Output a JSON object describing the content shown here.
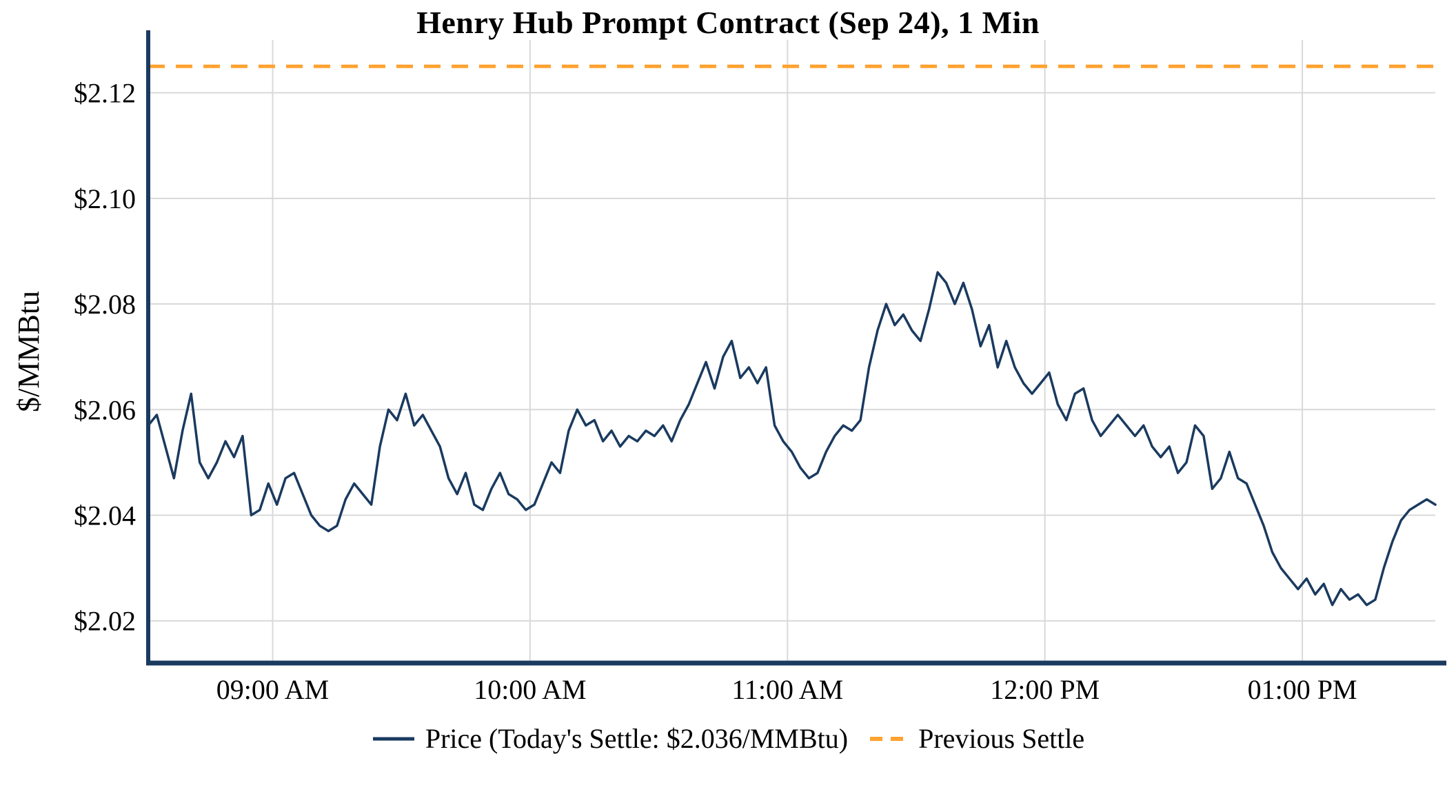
{
  "chart_data": {
    "type": "line",
    "title": "Henry Hub Prompt Contract (Sep 24), 1 Min",
    "xlabel": "",
    "ylabel": "$/MMBtu",
    "grid": true,
    "grid_color": "#d9d9d9",
    "axis_color": "#1a3a5f",
    "legend_position": "bottom",
    "legend": {
      "price": "Price (Today's Settle: $2.036/MMBtu)",
      "previous_settle": "Previous Settle"
    },
    "today_settle": 2.036,
    "x_axis": {
      "start_label": "08:31 AM",
      "end_label": "01:31 PM",
      "step_minutes": 2,
      "tick_labels": [
        "09:00 AM",
        "10:00 AM",
        "11:00 AM",
        "12:00 PM",
        "01:00 PM"
      ],
      "tick_minutes_from_start": [
        29,
        89,
        149,
        209,
        269
      ]
    },
    "y_axis": {
      "tick_labels": [
        "$2.02",
        "$2.04",
        "$2.06",
        "$2.08",
        "$2.10",
        "$2.12"
      ],
      "tick_values": [
        2.02,
        2.04,
        2.06,
        2.08,
        2.1,
        2.12
      ],
      "range": [
        2.012,
        2.13
      ]
    },
    "series": [
      {
        "name": "Price",
        "color": "#1a3a5f",
        "style": "solid",
        "values": [
          2.057,
          2.059,
          2.053,
          2.047,
          2.056,
          2.063,
          2.05,
          2.047,
          2.05,
          2.054,
          2.051,
          2.055,
          2.04,
          2.041,
          2.046,
          2.042,
          2.047,
          2.048,
          2.044,
          2.04,
          2.038,
          2.037,
          2.038,
          2.043,
          2.046,
          2.044,
          2.042,
          2.053,
          2.06,
          2.058,
          2.063,
          2.057,
          2.059,
          2.056,
          2.053,
          2.047,
          2.044,
          2.048,
          2.042,
          2.041,
          2.045,
          2.048,
          2.044,
          2.043,
          2.041,
          2.042,
          2.046,
          2.05,
          2.048,
          2.056,
          2.06,
          2.057,
          2.058,
          2.054,
          2.056,
          2.053,
          2.055,
          2.054,
          2.056,
          2.055,
          2.057,
          2.054,
          2.058,
          2.061,
          2.065,
          2.069,
          2.064,
          2.07,
          2.073,
          2.066,
          2.068,
          2.065,
          2.068,
          2.057,
          2.054,
          2.052,
          2.049,
          2.047,
          2.048,
          2.052,
          2.055,
          2.057,
          2.056,
          2.058,
          2.068,
          2.075,
          2.08,
          2.076,
          2.078,
          2.075,
          2.073,
          2.079,
          2.086,
          2.084,
          2.08,
          2.084,
          2.079,
          2.072,
          2.076,
          2.068,
          2.073,
          2.068,
          2.065,
          2.063,
          2.065,
          2.067,
          2.061,
          2.058,
          2.063,
          2.064,
          2.058,
          2.055,
          2.057,
          2.059,
          2.057,
          2.055,
          2.057,
          2.053,
          2.051,
          2.053,
          2.048,
          2.05,
          2.057,
          2.055,
          2.045,
          2.047,
          2.052,
          2.047,
          2.046,
          2.042,
          2.038,
          2.033,
          2.03,
          2.028,
          2.026,
          2.028,
          2.025,
          2.027,
          2.023,
          2.026,
          2.024,
          2.025,
          2.023,
          2.024,
          2.03,
          2.035,
          2.039,
          2.041,
          2.042,
          2.043,
          2.042
        ]
      },
      {
        "name": "Previous Settle",
        "color": "#ffa230",
        "style": "dashed",
        "value": 2.125
      }
    ]
  }
}
